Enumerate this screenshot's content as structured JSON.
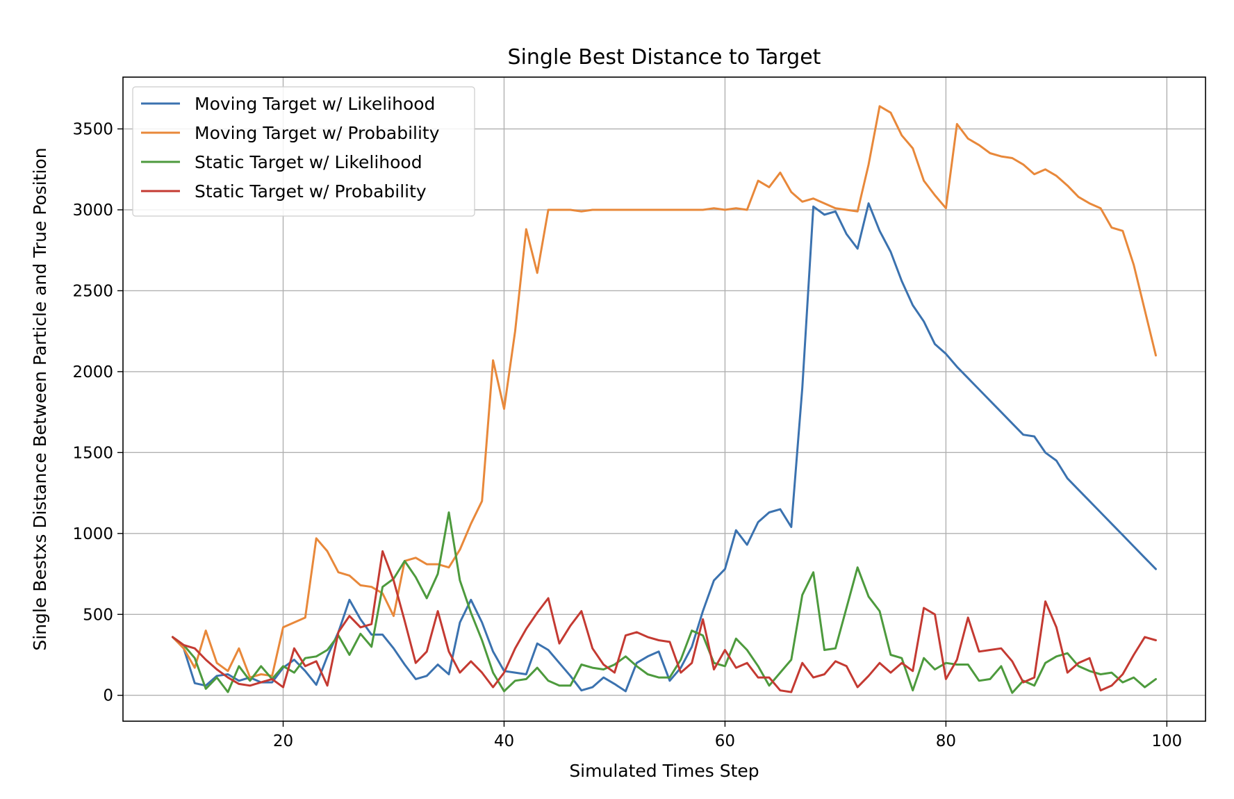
{
  "chart_data": {
    "type": "line",
    "title": "Single Best Distance to Target",
    "xlabel": "Simulated Times Step",
    "ylabel": "Single Bestxs Distance Between Particle and True Position",
    "xlim": [
      5.5,
      103.5
    ],
    "ylim": [
      -160,
      3820
    ],
    "x_ticks": [
      20,
      40,
      60,
      80,
      100
    ],
    "y_ticks": [
      0,
      500,
      1000,
      1500,
      2000,
      2500,
      3000,
      3500
    ],
    "grid": true,
    "legend_position": "top-left",
    "x": [
      10,
      11,
      12,
      13,
      14,
      15,
      16,
      17,
      18,
      19,
      20,
      21,
      22,
      23,
      24,
      25,
      26,
      27,
      28,
      29,
      30,
      31,
      32,
      33,
      34,
      35,
      36,
      37,
      38,
      39,
      40,
      41,
      42,
      43,
      44,
      45,
      46,
      47,
      48,
      49,
      50,
      51,
      52,
      53,
      54,
      55,
      56,
      57,
      58,
      59,
      60,
      61,
      62,
      63,
      64,
      65,
      66,
      67,
      68,
      69,
      70,
      71,
      72,
      73,
      74,
      75,
      76,
      77,
      78,
      79,
      80,
      81,
      82,
      83,
      84,
      85,
      86,
      87,
      88,
      89,
      90,
      91,
      92,
      93,
      94,
      95,
      96,
      97,
      98,
      99
    ],
    "series": [
      {
        "name": "Moving Target w/ Likelihood",
        "color": "#3b72af",
        "values": [
          360,
          290,
          75,
          60,
          120,
          130,
          90,
          110,
          80,
          80,
          170,
          220,
          150,
          65,
          240,
          390,
          590,
          470,
          375,
          375,
          290,
          190,
          100,
          120,
          190,
          130,
          450,
          590,
          450,
          270,
          150,
          140,
          130,
          320,
          280,
          200,
          120,
          30,
          50,
          110,
          70,
          25,
          200,
          240,
          270,
          90,
          170,
          300,
          520,
          710,
          780,
          1020,
          930,
          1070,
          1130,
          1150,
          1040,
          1900,
          3020,
          2970,
          2990,
          2850,
          2760,
          3040,
          2870,
          2740,
          2560,
          2410,
          2310,
          2170,
          2110,
          2030,
          1960,
          1890,
          1820,
          1750,
          1680,
          1610,
          1600,
          1500,
          1450,
          1340,
          1270,
          1200,
          1130,
          1060,
          990,
          920,
          850,
          780
        ]
      },
      {
        "name": "Moving Target w/ Probability",
        "color": "#e8883a",
        "values": [
          360,
          290,
          170,
          400,
          200,
          150,
          290,
          110,
          130,
          120,
          420,
          450,
          480,
          970,
          890,
          760,
          740,
          680,
          670,
          630,
          490,
          830,
          850,
          810,
          810,
          790,
          900,
          1060,
          1200,
          2070,
          1770,
          2250,
          2880,
          2610,
          3000,
          3000,
          3000,
          2990,
          3000,
          3000,
          3000,
          3000,
          3000,
          3000,
          3000,
          3000,
          3000,
          3000,
          3000,
          3010,
          3000,
          3010,
          3000,
          3180,
          3140,
          3230,
          3110,
          3050,
          3070,
          3040,
          3010,
          3000,
          2990,
          3280,
          3640,
          3600,
          3460,
          3380,
          3180,
          3090,
          3010,
          3530,
          3440,
          3400,
          3350,
          3330,
          3320,
          3280,
          3220,
          3250,
          3210,
          3150,
          3080,
          3040,
          3010,
          2890,
          2870,
          2660,
          2380,
          2100
        ]
      },
      {
        "name": "Static Target w/ Likelihood",
        "color": "#4d9a3d",
        "values": [
          360,
          310,
          230,
          40,
          110,
          20,
          180,
          90,
          180,
          100,
          180,
          140,
          230,
          240,
          280,
          370,
          250,
          380,
          300,
          670,
          720,
          830,
          730,
          600,
          750,
          1130,
          710,
          510,
          340,
          140,
          25,
          90,
          100,
          170,
          90,
          60,
          60,
          190,
          170,
          160,
          190,
          240,
          180,
          130,
          110,
          110,
          220,
          400,
          370,
          200,
          180,
          350,
          280,
          180,
          60,
          140,
          220,
          620,
          760,
          280,
          290,
          540,
          790,
          610,
          520,
          250,
          230,
          30,
          230,
          160,
          200,
          190,
          190,
          90,
          100,
          180,
          15,
          90,
          60,
          200,
          240,
          260,
          180,
          150,
          130,
          140,
          80,
          110,
          50,
          100
        ]
      },
      {
        "name": "Static Target w/ Probability",
        "color": "#c43a32",
        "values": [
          360,
          310,
          290,
          220,
          160,
          110,
          70,
          60,
          80,
          100,
          50,
          290,
          180,
          210,
          60,
          390,
          490,
          420,
          440,
          890,
          710,
          460,
          200,
          270,
          520,
          270,
          140,
          210,
          140,
          50,
          140,
          290,
          410,
          510,
          600,
          320,
          430,
          520,
          290,
          190,
          140,
          370,
          390,
          360,
          340,
          330,
          140,
          200,
          470,
          160,
          280,
          170,
          200,
          110,
          110,
          30,
          20,
          200,
          110,
          130,
          210,
          180,
          50,
          120,
          200,
          140,
          200,
          150,
          540,
          500,
          100,
          220,
          480,
          270,
          280,
          290,
          210,
          80,
          110,
          580,
          420,
          140,
          200,
          230,
          30,
          60,
          130,
          250,
          360,
          340
        ]
      }
    ]
  }
}
